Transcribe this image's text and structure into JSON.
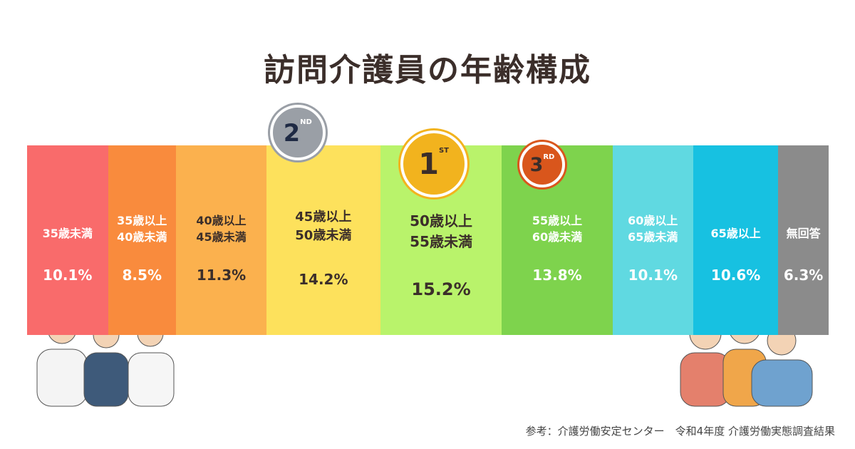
{
  "chart_data": {
    "type": "stacked-bar",
    "title": "訪問介護員の年齢構成",
    "categories": [
      "35歳未満",
      "35歳以上\n40歳未満",
      "40歳以上\n45歳未満",
      "45歳以上\n50歳未満",
      "50歳以上\n55歳未満",
      "55歳以上\n60歳未満",
      "60歳以上\n65歳未満",
      "65歳以上",
      "無回答"
    ],
    "values": [
      10.1,
      8.5,
      11.3,
      14.2,
      15.2,
      13.8,
      10.1,
      10.6,
      6.3
    ],
    "value_labels": [
      "10.1%",
      "8.5%",
      "11.3%",
      "14.2%",
      "15.2%",
      "13.8%",
      "10.1%",
      "10.6%",
      "6.3%"
    ],
    "colors": [
      "#f96b6b",
      "#f98b3d",
      "#fbb14e",
      "#fde15c",
      "#b9f36b",
      "#7ed34d",
      "#60d9e1",
      "#17c1e1",
      "#8b8b8b"
    ],
    "medals": [
      {
        "rank": "2",
        "suffix": "ND"
      },
      {
        "rank": "1",
        "suffix": "ST"
      },
      {
        "rank": "3",
        "suffix": "RD"
      }
    ],
    "source": "参考：介護労働安定センター　令和4年度 介護労働実態調査結果"
  }
}
